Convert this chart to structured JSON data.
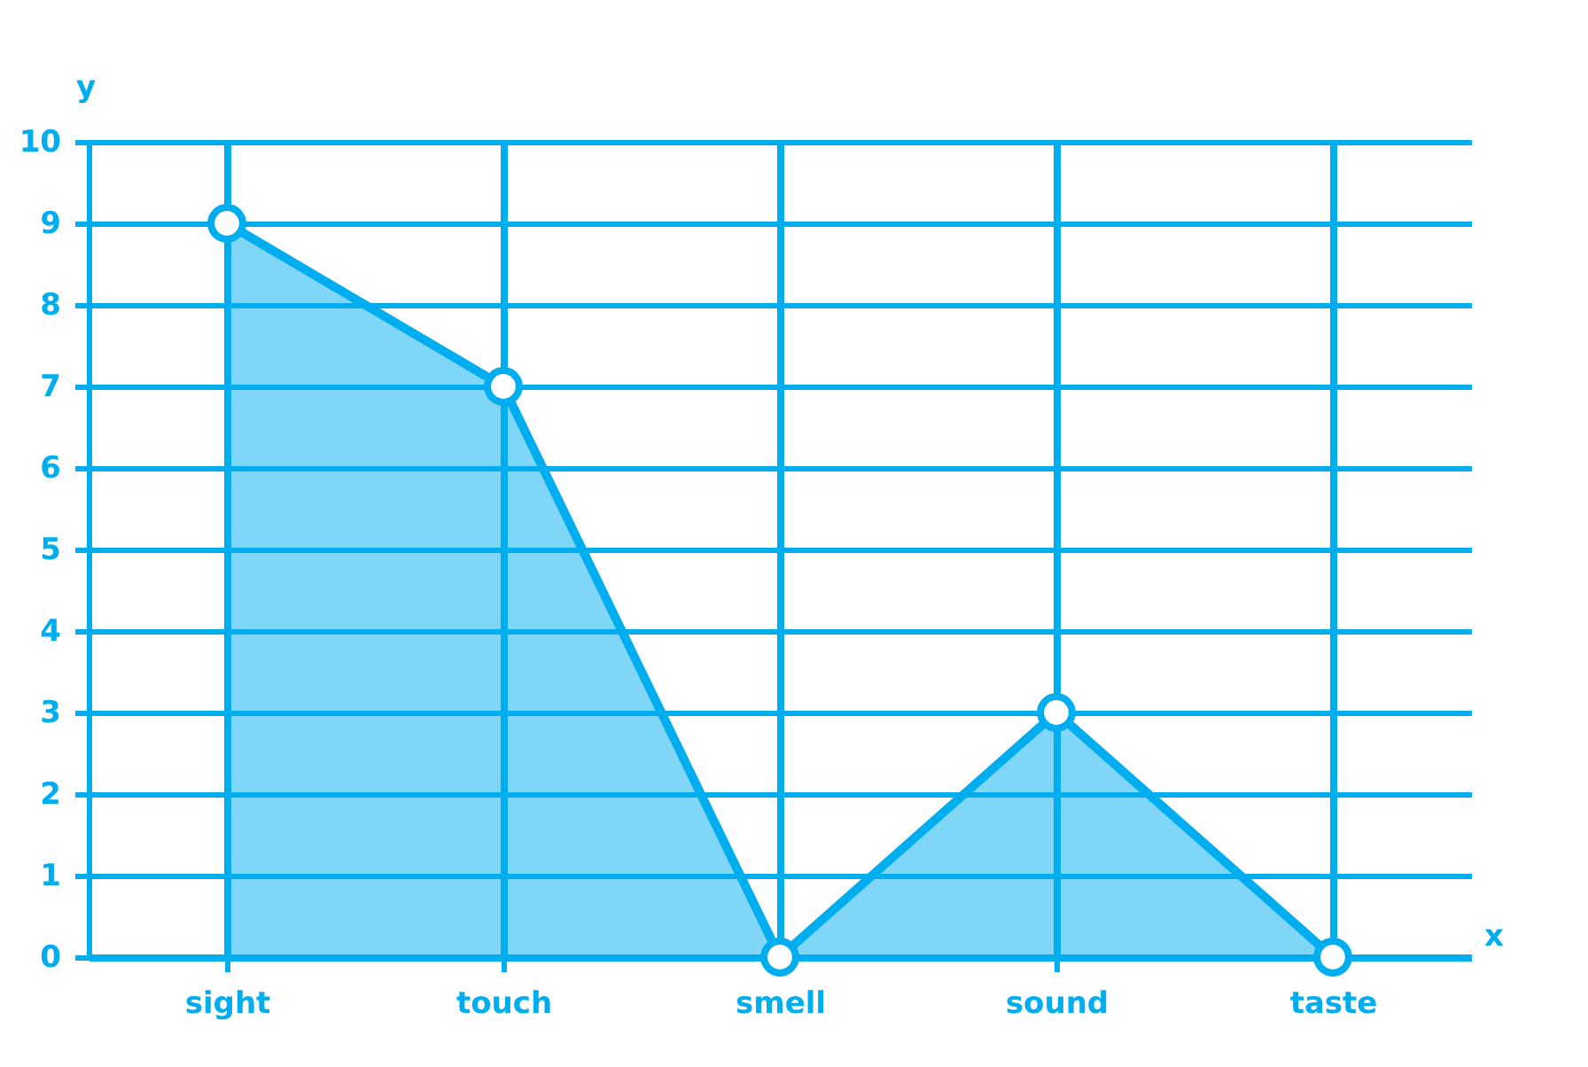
{
  "chart_data": {
    "type": "area",
    "xlabel": "x",
    "ylabel": "y",
    "categories": [
      "sight",
      "touch",
      "smell",
      "sound",
      "taste"
    ],
    "series": [
      {
        "color": "#00aeef",
        "values": [
          9,
          7,
          0,
          3,
          0
        ]
      }
    ],
    "ylim": [
      0,
      10
    ],
    "yticks": [
      0,
      1,
      2,
      3,
      4,
      5,
      6,
      7,
      8,
      9,
      10
    ],
    "grid": true,
    "marker": "circle",
    "line_style": "solid"
  }
}
